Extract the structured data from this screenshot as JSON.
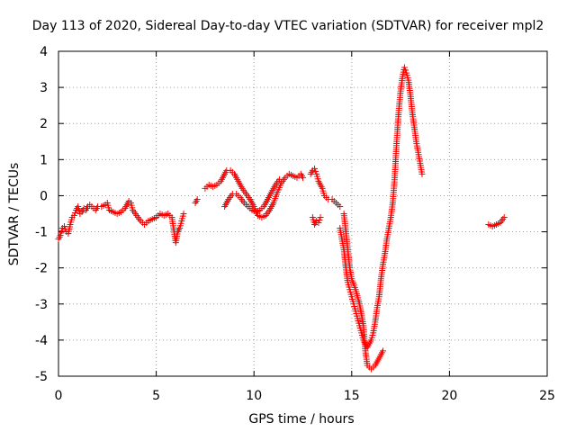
{
  "chart_data": {
    "type": "scatter",
    "title": "Day 113 of 2020, Sidereal Day-to-day VTEC variation (SDTVAR) for receiver mpl2",
    "xlabel": "GPS time / hours",
    "ylabel": "SDTVAR / TECUs",
    "xlim": [
      0,
      25
    ],
    "ylim": [
      -5,
      4
    ],
    "xticks": [
      "0",
      "5",
      "10",
      "15",
      "20",
      "25"
    ],
    "yticks": [
      "-5",
      "-4",
      "-3",
      "-2",
      "-1",
      "0",
      "1",
      "2",
      "3",
      "4"
    ],
    "grid": true,
    "legend": "none",
    "marker": "plus",
    "series_color": "#ff0000",
    "series": [
      {
        "values": [
          [
            0.0,
            -1.2
          ],
          [
            0.1,
            -1.1
          ],
          [
            0.2,
            -0.9
          ],
          [
            0.3,
            -0.85
          ],
          [
            0.4,
            -1.0
          ],
          [
            0.5,
            -1.05
          ],
          [
            0.6,
            -0.8
          ],
          [
            0.7,
            -0.6
          ],
          [
            0.8,
            -0.55
          ],
          [
            0.9,
            -0.4
          ],
          [
            1.0,
            -0.3
          ],
          [
            1.1,
            -0.5
          ],
          [
            1.2,
            -0.45
          ],
          [
            1.3,
            -0.35
          ],
          [
            1.4,
            -0.4
          ],
          [
            1.5,
            -0.3
          ],
          [
            1.6,
            -0.25
          ],
          [
            1.7,
            -0.3
          ],
          [
            1.8,
            -0.35
          ],
          [
            1.9,
            -0.4
          ],
          [
            2.0,
            -0.3
          ],
          [
            2.2,
            -0.3
          ],
          [
            2.4,
            -0.25
          ],
          [
            2.5,
            -0.2
          ],
          [
            2.6,
            -0.4
          ],
          [
            2.8,
            -0.45
          ],
          [
            3.0,
            -0.5
          ],
          [
            3.2,
            -0.45
          ],
          [
            3.4,
            -0.35
          ],
          [
            3.6,
            -0.15
          ],
          [
            3.7,
            -0.2
          ],
          [
            3.8,
            -0.4
          ],
          [
            4.0,
            -0.55
          ],
          [
            4.2,
            -0.7
          ],
          [
            4.4,
            -0.8
          ],
          [
            4.6,
            -0.7
          ],
          [
            4.8,
            -0.65
          ],
          [
            5.0,
            -0.6
          ],
          [
            5.2,
            -0.5
          ],
          [
            5.4,
            -0.55
          ],
          [
            5.6,
            -0.5
          ],
          [
            5.8,
            -0.6
          ],
          [
            6.0,
            -1.3
          ],
          [
            6.1,
            -1.0
          ],
          [
            6.2,
            -0.9
          ],
          [
            6.3,
            -0.7
          ],
          [
            6.4,
            -0.5
          ],
          [
            7.0,
            -0.2
          ],
          [
            7.1,
            -0.1
          ],
          [
            7.5,
            0.2
          ],
          [
            7.7,
            0.3
          ],
          [
            7.9,
            0.25
          ],
          [
            8.1,
            0.3
          ],
          [
            8.3,
            0.4
          ],
          [
            8.5,
            0.6
          ],
          [
            8.6,
            0.7
          ],
          [
            8.8,
            0.7
          ],
          [
            9.0,
            0.6
          ],
          [
            9.2,
            0.4
          ],
          [
            9.4,
            0.2
          ],
          [
            9.6,
            0.05
          ],
          [
            9.8,
            -0.1
          ],
          [
            10.0,
            -0.3
          ],
          [
            10.2,
            -0.55
          ],
          [
            10.4,
            -0.6
          ],
          [
            10.6,
            -0.55
          ],
          [
            10.8,
            -0.4
          ],
          [
            11.0,
            -0.2
          ],
          [
            11.2,
            0.1
          ],
          [
            11.4,
            0.35
          ],
          [
            11.6,
            0.5
          ],
          [
            11.8,
            0.6
          ],
          [
            12.0,
            0.55
          ],
          [
            12.2,
            0.5
          ],
          [
            12.4,
            0.6
          ],
          [
            12.5,
            0.5
          ],
          [
            8.5,
            -0.3
          ],
          [
            8.7,
            -0.1
          ],
          [
            8.9,
            0.05
          ],
          [
            9.1,
            0.05
          ],
          [
            9.3,
            -0.05
          ],
          [
            9.5,
            -0.2
          ],
          [
            9.7,
            -0.3
          ],
          [
            9.9,
            -0.4
          ],
          [
            10.1,
            -0.45
          ],
          [
            10.3,
            -0.4
          ],
          [
            10.5,
            -0.3
          ],
          [
            10.7,
            -0.1
          ],
          [
            10.9,
            0.1
          ],
          [
            11.1,
            0.3
          ],
          [
            11.3,
            0.45
          ],
          [
            12.9,
            0.6
          ],
          [
            13.0,
            0.7
          ],
          [
            13.1,
            0.75
          ],
          [
            13.2,
            0.6
          ],
          [
            13.3,
            0.4
          ],
          [
            13.4,
            0.3
          ],
          [
            13.5,
            0.2
          ],
          [
            13.6,
            0.0
          ],
          [
            13.8,
            -0.1
          ],
          [
            14.0,
            -0.1
          ],
          [
            14.2,
            -0.2
          ],
          [
            14.4,
            -0.3
          ],
          [
            13.0,
            -0.6
          ],
          [
            13.1,
            -0.8
          ],
          [
            13.2,
            -0.7
          ],
          [
            13.3,
            -0.75
          ],
          [
            13.4,
            -0.6
          ],
          [
            14.4,
            -0.9
          ],
          [
            14.5,
            -1.2
          ],
          [
            14.6,
            -1.5
          ],
          [
            14.7,
            -2.0
          ],
          [
            14.8,
            -2.4
          ],
          [
            14.9,
            -2.6
          ],
          [
            15.0,
            -2.8
          ],
          [
            15.1,
            -3.0
          ],
          [
            15.2,
            -3.2
          ],
          [
            15.3,
            -3.4
          ],
          [
            15.4,
            -3.6
          ],
          [
            15.5,
            -3.8
          ],
          [
            15.6,
            -4.0
          ],
          [
            15.7,
            -4.1
          ],
          [
            15.8,
            -4.2
          ],
          [
            15.9,
            -4.1
          ],
          [
            16.0,
            -4.0
          ],
          [
            16.1,
            -3.8
          ],
          [
            16.2,
            -3.5
          ],
          [
            16.3,
            -3.1
          ],
          [
            16.4,
            -2.8
          ],
          [
            16.5,
            -2.3
          ],
          [
            16.6,
            -1.9
          ],
          [
            16.7,
            -1.6
          ],
          [
            16.8,
            -1.2
          ],
          [
            16.9,
            -0.9
          ],
          [
            17.0,
            -0.6
          ],
          [
            17.1,
            -0.2
          ],
          [
            17.2,
            0.5
          ],
          [
            17.3,
            1.5
          ],
          [
            17.4,
            2.3
          ],
          [
            17.5,
            2.9
          ],
          [
            17.6,
            3.3
          ],
          [
            17.7,
            3.55
          ],
          [
            17.8,
            3.4
          ],
          [
            17.9,
            3.2
          ],
          [
            18.0,
            2.8
          ],
          [
            18.1,
            2.3
          ],
          [
            18.2,
            1.9
          ],
          [
            18.3,
            1.5
          ],
          [
            18.4,
            1.2
          ],
          [
            18.5,
            0.9
          ],
          [
            18.6,
            0.6
          ],
          [
            14.6,
            -0.5
          ],
          [
            14.7,
            -1.0
          ],
          [
            14.8,
            -1.5
          ],
          [
            14.9,
            -2.0
          ],
          [
            15.0,
            -2.3
          ],
          [
            15.2,
            -2.6
          ],
          [
            15.4,
            -3.0
          ],
          [
            15.6,
            -3.6
          ],
          [
            15.7,
            -4.3
          ],
          [
            15.8,
            -4.7
          ],
          [
            16.0,
            -4.8
          ],
          [
            16.2,
            -4.7
          ],
          [
            16.4,
            -4.5
          ],
          [
            16.6,
            -4.3
          ],
          [
            22.0,
            -0.8
          ],
          [
            22.2,
            -0.85
          ],
          [
            22.4,
            -0.8
          ],
          [
            22.6,
            -0.75
          ],
          [
            22.8,
            -0.6
          ]
        ]
      }
    ]
  }
}
